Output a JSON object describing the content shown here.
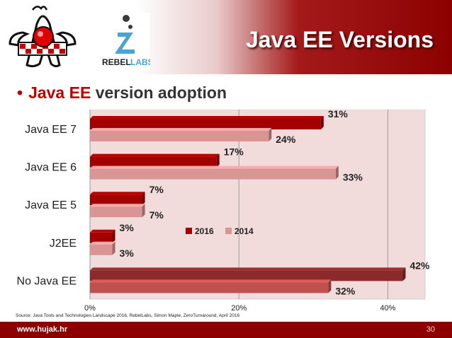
{
  "slide": {
    "title": "Java EE Versions",
    "bullet_accent": "Java EE",
    "bullet_rest": " version adoption",
    "source": "Source: Java Tools and Technologies Landscape 2016, RebelLabs, Simon Maple, ZeroTurnaround, April 2016",
    "footer_url": "www.hujak.hr",
    "page_number": "30",
    "rebel_brand": "REBEL",
    "rebel_brand2": "LABS"
  },
  "chart_data": {
    "type": "bar",
    "orientation": "horizontal",
    "categories": [
      "Java EE 7",
      "Java EE 6",
      "Java EE 5",
      "J2EE",
      "No Java EE"
    ],
    "series": [
      {
        "name": "2016",
        "values": [
          31,
          17,
          7,
          3,
          42
        ],
        "labels": [
          "31%",
          "17%",
          "7%",
          "3%",
          "42%"
        ],
        "color": "#a30000"
      },
      {
        "name": "2014",
        "values": [
          24,
          33,
          7,
          3,
          32
        ],
        "labels": [
          "24%",
          "33%",
          "7%",
          "3%",
          "32%"
        ],
        "color": "#d99594"
      }
    ],
    "highlight": {
      "category": "No Java EE",
      "colors": [
        "#8b2a2a",
        "#c0504d"
      ]
    },
    "xlim": [
      0,
      45
    ],
    "xticks": [
      0,
      20,
      40
    ],
    "xtick_labels": [
      "0%",
      "20%",
      "40%"
    ],
    "grid": true,
    "legend": "center-right",
    "plot_background": "#f2dcdb"
  }
}
